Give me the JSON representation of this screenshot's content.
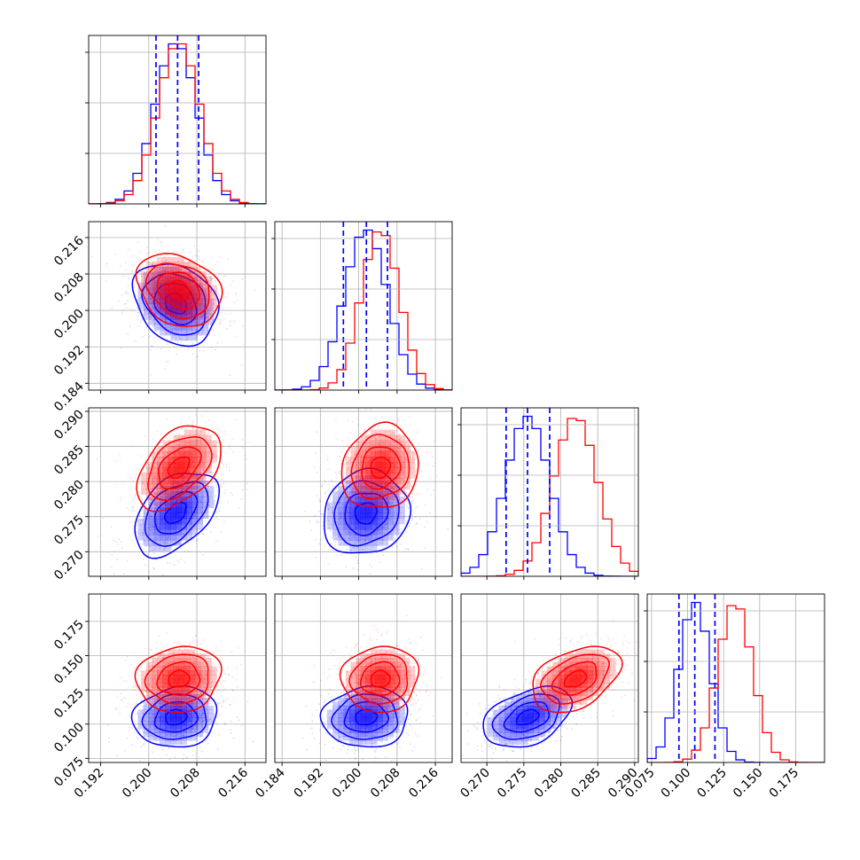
{
  "chart_data": {
    "type": "corner",
    "grid": true,
    "colors": {
      "series_a": "#0000ff",
      "series_b": "#ff0000"
    },
    "series": [
      {
        "color": "#0000ff",
        "mean": [
          0.2045,
          0.2015,
          0.2755,
          0.105
        ],
        "sd": [
          0.0035,
          0.0045,
          0.003,
          0.011
        ],
        "corr": {
          "0_1": -0.25,
          "0_2": 0.45,
          "1_2": 0.1,
          "0_3": 0.1,
          "1_3": 0.05,
          "2_3": 0.4
        }
      },
      {
        "color": "#ff0000",
        "mean": [
          0.205,
          0.2045,
          0.282,
          0.133
        ],
        "sd": [
          0.0035,
          0.004,
          0.003,
          0.012
        ],
        "corr": {
          "0_1": -0.25,
          "0_2": 0.45,
          "1_2": 0.1,
          "0_3": 0.1,
          "1_3": 0.05,
          "2_3": 0.4
        }
      }
    ],
    "quantile_lines": {
      "color": "#0000ff",
      "dims": [
        [
          0.2012,
          0.2048,
          0.2083
        ],
        [
          0.1968,
          0.2016,
          0.206
        ],
        [
          0.2726,
          0.2755,
          0.2785
        ],
        [
          0.094,
          0.105,
          0.119
        ]
      ]
    },
    "axes": [
      {
        "range": [
          0.19,
          0.2195
        ],
        "ticks": [
          0.192,
          0.2,
          0.208,
          0.216
        ],
        "tick_labels": [
          "0.192",
          "0.200",
          "0.208",
          "0.216"
        ]
      },
      {
        "range": [
          0.1825,
          0.2195
        ],
        "ticks": [
          0.184,
          0.192,
          0.2,
          0.208,
          0.216
        ],
        "tick_labels": [
          "0.184",
          "0.192",
          "0.200",
          "0.208",
          "0.216"
        ]
      },
      {
        "range": [
          0.2665,
          0.2905
        ],
        "ticks": [
          0.27,
          0.275,
          0.28,
          0.285,
          0.29
        ],
        "tick_labels": [
          "0.270",
          "0.275",
          "0.280",
          "0.285",
          "0.290"
        ]
      },
      {
        "range": [
          0.072,
          0.195
        ],
        "ticks": [
          0.075,
          0.1,
          0.125,
          0.15,
          0.175
        ],
        "tick_labels": [
          "0.075",
          "0.100",
          "0.125",
          "0.150",
          "0.175"
        ]
      }
    ],
    "hist_bins": 20,
    "title": "",
    "xlabel": "",
    "ylabel": ""
  }
}
